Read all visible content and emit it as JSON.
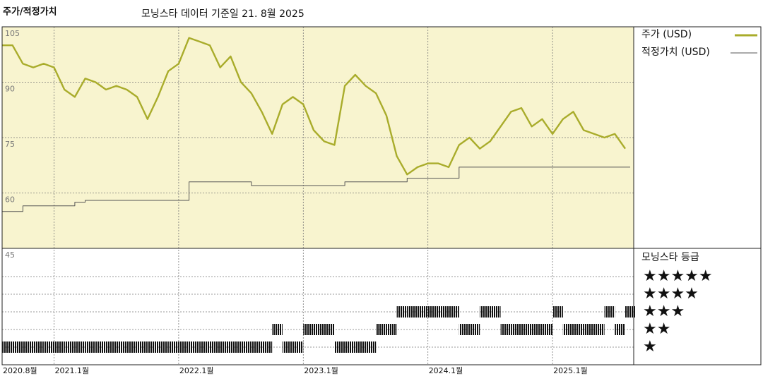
{
  "header": {
    "title": "주가/적정가치",
    "subtitle": "모닝스타 데이터 기준일 21. 8월 2025"
  },
  "chart_data": {
    "type": "line",
    "x": [
      "2020.8",
      "2020.9",
      "2020.10",
      "2020.11",
      "2020.12",
      "2021.1",
      "2021.2",
      "2021.3",
      "2021.4",
      "2021.5",
      "2021.6",
      "2021.7",
      "2021.8",
      "2021.9",
      "2021.10",
      "2021.11",
      "2021.12",
      "2022.1",
      "2022.2",
      "2022.3",
      "2022.4",
      "2022.5",
      "2022.6",
      "2022.7",
      "2022.8",
      "2022.9",
      "2022.10",
      "2022.11",
      "2022.12",
      "2023.1",
      "2023.2",
      "2023.3",
      "2023.4",
      "2023.5",
      "2023.6",
      "2023.7",
      "2023.8",
      "2023.9",
      "2023.10",
      "2023.11",
      "2023.12",
      "2024.1",
      "2024.2",
      "2024.3",
      "2024.4",
      "2024.5",
      "2024.6",
      "2024.7",
      "2024.8",
      "2024.9",
      "2024.10",
      "2024.11",
      "2024.12",
      "2025.1",
      "2025.2",
      "2025.3",
      "2025.4",
      "2025.5",
      "2025.6",
      "2025.7",
      "2025.8"
    ],
    "xticks": [
      {
        "value": "2020.8",
        "label": "2020.8월"
      },
      {
        "value": "2021.1",
        "label": "2021.1월"
      },
      {
        "value": "2022.1",
        "label": "2022.1월"
      },
      {
        "value": "2023.1",
        "label": "2023.1월"
      },
      {
        "value": "2024.1",
        "label": "2024.1월"
      },
      {
        "value": "2025.1",
        "label": "2025.1월"
      }
    ],
    "ylim": [
      45,
      105
    ],
    "yticks": [
      45,
      60,
      75,
      90,
      105
    ],
    "grid": true,
    "series": [
      {
        "name": "주가 (USD)",
        "color": "#a9ac2b",
        "values": [
          100,
          100,
          95,
          94,
          95,
          94,
          88,
          86,
          91,
          90,
          88,
          89,
          88,
          86,
          80,
          86,
          93,
          95,
          102,
          101,
          100,
          94,
          97,
          90,
          87,
          82,
          76,
          84,
          86,
          84,
          77,
          74,
          73,
          89,
          92,
          89,
          87,
          81,
          70,
          65,
          67,
          68,
          68,
          67,
          73,
          75,
          72,
          74,
          78,
          82,
          83,
          78,
          80,
          76,
          80,
          82,
          77,
          76,
          75,
          76,
          72
        ]
      },
      {
        "name": "적정가치 (USD)",
        "color": "#555555",
        "values": [
          55,
          55,
          56.5,
          56.5,
          56.5,
          56.5,
          56.5,
          57.5,
          58,
          58,
          58,
          58,
          58,
          58,
          58,
          58,
          58,
          58,
          63,
          63,
          63,
          63,
          63,
          63,
          62,
          62,
          62,
          62,
          62,
          62,
          62,
          62,
          62,
          63,
          63,
          63,
          63,
          63,
          63,
          64,
          64,
          64,
          64,
          64,
          67,
          67,
          67,
          67,
          67,
          67,
          67,
          67,
          67,
          67,
          67,
          67,
          67,
          67,
          67,
          67,
          67
        ]
      }
    ],
    "rating": {
      "title": "모닝스타 등급",
      "levels": [
        {
          "value": 5,
          "label": "★★★★★"
        },
        {
          "value": 4,
          "label": "★★★★"
        },
        {
          "value": 3,
          "label": "★★★"
        },
        {
          "value": 2,
          "label": "★★"
        },
        {
          "value": 1,
          "label": "★"
        }
      ],
      "values": [
        1,
        1,
        1,
        1,
        1,
        1,
        1,
        1,
        1,
        1,
        1,
        1,
        1,
        1,
        1,
        1,
        1,
        1,
        1,
        1,
        1,
        1,
        1,
        1,
        1,
        1,
        2,
        1,
        1,
        2,
        2,
        2,
        1,
        1,
        1,
        1,
        2,
        2,
        3,
        3,
        3,
        3,
        3,
        3,
        2,
        2,
        3,
        3,
        2,
        2,
        2,
        2,
        2,
        3,
        2,
        2,
        2,
        2,
        3,
        2,
        3
      ]
    }
  }
}
